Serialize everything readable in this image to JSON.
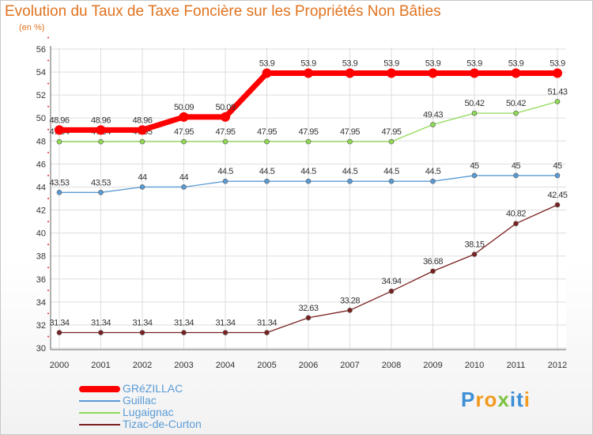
{
  "chart_data": {
    "type": "line",
    "title": "Evolution du Taux de Taxe Foncière sur les Propriétés Non Bâties",
    "ylabel": "(en %)",
    "xlabel": "",
    "categories": [
      "2000",
      "2001",
      "2002",
      "2003",
      "2004",
      "2005",
      "2006",
      "2007",
      "2008",
      "2009",
      "2010",
      "2011",
      "2012"
    ],
    "ylim": [
      30,
      56
    ],
    "yticks": [
      "30",
      "32",
      "34",
      "36",
      "38",
      "40",
      "42",
      "44",
      "46",
      "48",
      "50",
      "52",
      "54",
      "56"
    ],
    "grid": true,
    "series": [
      {
        "name": "GRéZILLAC",
        "color": "#ff0000",
        "values": [
          48.96,
          48.96,
          48.96,
          50.09,
          50.09,
          53.9,
          53.9,
          53.9,
          53.9,
          53.9,
          53.9,
          53.9,
          53.9
        ],
        "labels": [
          "48.96",
          "48.96",
          "48.96",
          "50.09",
          "50.09",
          "53.9",
          "53.9",
          "53.9",
          "53.9",
          "53.9",
          "53.9",
          "53.9",
          "53.9"
        ]
      },
      {
        "name": "Guillac",
        "color": "#5a9bd4",
        "values": [
          43.53,
          43.53,
          44,
          44,
          44.5,
          44.5,
          44.5,
          44.5,
          44.5,
          44.5,
          45,
          45,
          45
        ],
        "labels": [
          "43.53",
          "43.53",
          "44",
          "44",
          "44.5",
          "44.5",
          "44.5",
          "44.5",
          "44.5",
          "44.5",
          "45",
          "45",
          "45"
        ]
      },
      {
        "name": "Lugaignac",
        "color": "#8fda55",
        "values": [
          47.94,
          47.94,
          47.95,
          47.95,
          47.95,
          47.95,
          47.95,
          47.95,
          47.95,
          49.43,
          50.42,
          50.42,
          51.43
        ],
        "labels": [
          "47.94",
          "47.94",
          "47.95",
          "47.95",
          "47.95",
          "47.95",
          "47.95",
          "47.95",
          "47.95",
          "49.43",
          "50.42",
          "50.42",
          "51.43"
        ]
      },
      {
        "name": "Tizac-de-Curton",
        "color": "#7a2020",
        "values": [
          31.34,
          31.34,
          31.34,
          31.34,
          31.34,
          31.34,
          32.63,
          33.28,
          34.94,
          36.68,
          38.15,
          40.82,
          42.45
        ],
        "labels": [
          "31.34",
          "31.34",
          "31.34",
          "31.34",
          "31.34",
          "31.34",
          "32.63",
          "33.28",
          "34.94",
          "36.68",
          "38.15",
          "40.82",
          "42.45"
        ]
      }
    ]
  },
  "colors": {
    "title": "#e0731f",
    "axis": "#666666",
    "grid": "#dddddd"
  },
  "logo": {
    "letters": [
      "P",
      "r",
      "o",
      "x",
      "i",
      "t",
      "i"
    ],
    "colors": [
      "#3d8fd6",
      "#f29a1f",
      "#f29a1f",
      "#7cc242",
      "#3d8fd6",
      "#3d8fd6",
      "#f29a1f"
    ]
  }
}
